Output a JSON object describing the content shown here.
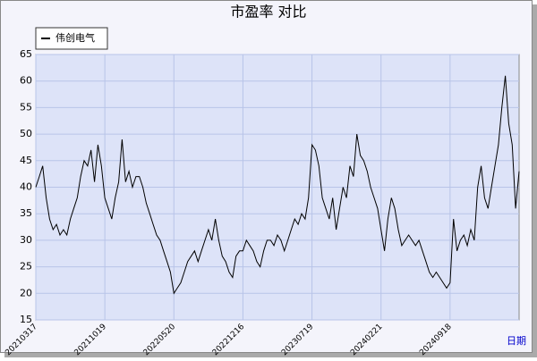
{
  "chart_data": {
    "type": "line",
    "title": "市盈率  对比",
    "x_label": "日期",
    "categories": [
      "20210317",
      null,
      null,
      null,
      null,
      null,
      null,
      null,
      null,
      null,
      null,
      null,
      null,
      null,
      null,
      null,
      null,
      null,
      null,
      null,
      "20211019",
      null,
      null,
      null,
      null,
      null,
      null,
      null,
      null,
      null,
      null,
      null,
      null,
      null,
      null,
      null,
      null,
      null,
      null,
      null,
      "20220520",
      null,
      null,
      null,
      null,
      null,
      null,
      null,
      null,
      null,
      null,
      null,
      null,
      null,
      null,
      null,
      null,
      null,
      null,
      null,
      "20221216",
      null,
      null,
      null,
      null,
      null,
      null,
      null,
      null,
      null,
      null,
      null,
      null,
      null,
      null,
      null,
      null,
      null,
      null,
      null,
      "20230719",
      null,
      null,
      null,
      null,
      null,
      null,
      null,
      null,
      null,
      null,
      null,
      null,
      null,
      null,
      null,
      null,
      null,
      null,
      null,
      "20240221",
      null,
      null,
      null,
      null,
      null,
      null,
      null,
      null,
      null,
      null,
      null,
      null,
      null,
      null,
      null,
      null,
      null,
      null,
      null,
      "20240918",
      null,
      null,
      null,
      null,
      null,
      null,
      null,
      null,
      null,
      null,
      null,
      null,
      null,
      null,
      null,
      null,
      null,
      null,
      null,
      null
    ],
    "series": [
      {
        "name": "伟创电气",
        "color": "#000000",
        "values": [
          40,
          42,
          44,
          38,
          34,
          32,
          33,
          31,
          32,
          31,
          34,
          36,
          38,
          42,
          45,
          44,
          47,
          41,
          48,
          44,
          38,
          36,
          34,
          38,
          41,
          49,
          41,
          43,
          40,
          42,
          42,
          40,
          37,
          35,
          33,
          31,
          30,
          28,
          26,
          24,
          20,
          21,
          22,
          24,
          26,
          27,
          28,
          26,
          28,
          30,
          32,
          30,
          34,
          30,
          27,
          26,
          24,
          23,
          27,
          28,
          28,
          30,
          29,
          28,
          26,
          25,
          28,
          30,
          30,
          29,
          31,
          30,
          28,
          30,
          32,
          34,
          33,
          35,
          34,
          38,
          48,
          47,
          44,
          38,
          36,
          34,
          38,
          32,
          36,
          40,
          38,
          44,
          42,
          50,
          46,
          45,
          43,
          40,
          38,
          36,
          32,
          28,
          34,
          38,
          36,
          32,
          29,
          30,
          31,
          30,
          29,
          30,
          28,
          26,
          24,
          23,
          24,
          23,
          22,
          21,
          22,
          34,
          28,
          30,
          31,
          29,
          32,
          30,
          40,
          44,
          38,
          36,
          40,
          44,
          48,
          55,
          61,
          52,
          48,
          36,
          43
        ]
      }
    ],
    "ylim": [
      15,
      65
    ],
    "yticks": [
      15,
      20,
      25,
      30,
      35,
      40,
      45,
      50,
      55,
      60,
      65
    ],
    "grid": true
  }
}
